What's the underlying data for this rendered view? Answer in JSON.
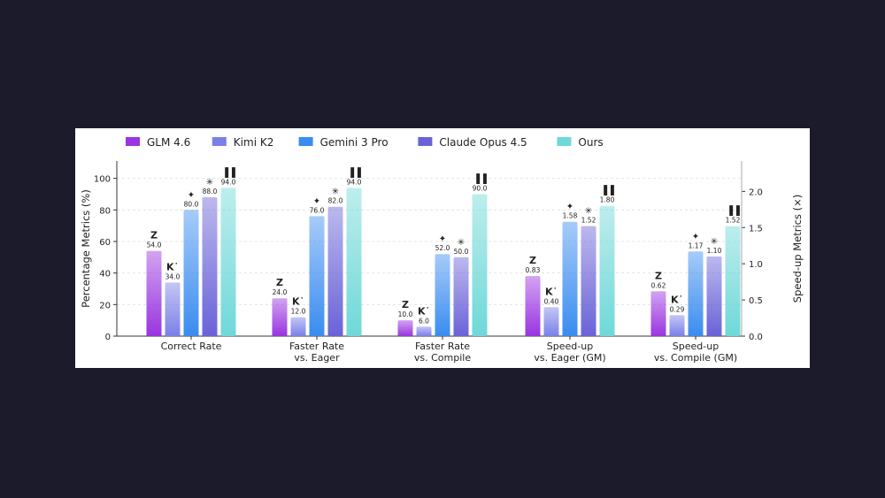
{
  "chart_data": {
    "type": "bar",
    "categories": [
      "Correct Rate",
      "Faster Rate\nvs. Eager",
      "Faster Rate\nvs. Compile",
      "Speed-up\nvs. Eager (GM)",
      "Speed-up\nvs. Compile (GM)"
    ],
    "category_axis": [
      "left",
      "left",
      "left",
      "right",
      "right"
    ],
    "series": [
      {
        "name": "GLM 4.6",
        "color": "#9a34e0",
        "icon": "zhipu-z-logo",
        "values": [
          54.0,
          24.0,
          10.0,
          0.83,
          0.62
        ]
      },
      {
        "name": "Kimi K2",
        "color": "#7b80e8",
        "icon": "kimi-k-logo",
        "values": [
          34.0,
          12.0,
          6.0,
          0.4,
          0.29
        ]
      },
      {
        "name": "Gemini 3 Pro",
        "color": "#3a8cf0",
        "icon": "gemini-sparkle-logo",
        "values": [
          80.0,
          76.0,
          52.0,
          1.58,
          1.17
        ]
      },
      {
        "name": "Claude Opus 4.5",
        "color": "#6a62d8",
        "icon": "claude-asterisk-logo",
        "values": [
          88.0,
          82.0,
          50.0,
          1.52,
          1.1
        ]
      },
      {
        "name": "Ours",
        "color": "#6fd8d8",
        "icon": "bar-chart-logo",
        "values": [
          94.0,
          94.0,
          90.0,
          1.8,
          1.52
        ]
      }
    ],
    "value_labels": [
      [
        "54.0",
        "24.0",
        "10.0",
        "0.83",
        "0.62"
      ],
      [
        "34.0",
        "12.0",
        "6.0",
        "0.40",
        "0.29"
      ],
      [
        "80.0",
        "76.0",
        "52.0",
        "1.58",
        "1.17"
      ],
      [
        "88.0",
        "82.0",
        "50.0",
        "1.52",
        "1.10"
      ],
      [
        "94.0",
        "94.0",
        "90.0",
        "1.80",
        "1.52"
      ]
    ],
    "ylabel_left": "Percentage Metrics (%)",
    "ylabel_right": "Speed-up Metrics (×)",
    "ylim_left": [
      0,
      111
    ],
    "ylim_right": [
      0,
      2.42
    ],
    "yticks_left": [
      "0",
      "20",
      "40",
      "60",
      "80",
      "100"
    ],
    "yticks_right": [
      "0.0",
      "0.5",
      "1.0",
      "1.5",
      "2.0"
    ],
    "grid": true,
    "legend_position": "top"
  }
}
